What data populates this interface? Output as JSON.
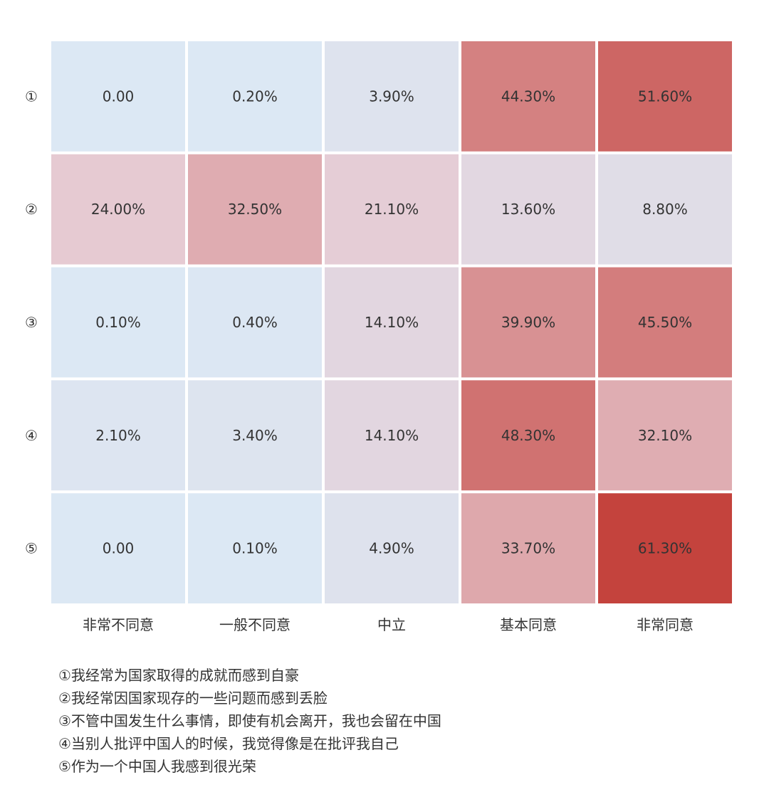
{
  "chart_data": {
    "type": "heatmap",
    "title": "",
    "xlabel": "",
    "ylabel": "",
    "columns": [
      "非常不同意",
      "一般不同意",
      "中立",
      "基本同意",
      "非常同意"
    ],
    "rows": [
      "①",
      "②",
      "③",
      "④",
      "⑤"
    ],
    "values": [
      [
        0.0,
        0.2,
        3.9,
        44.3,
        51.6
      ],
      [
        24.0,
        32.5,
        21.1,
        13.6,
        8.8
      ],
      [
        0.1,
        0.4,
        14.1,
        39.9,
        45.5
      ],
      [
        2.1,
        3.4,
        14.1,
        48.3,
        32.1
      ],
      [
        0.0,
        0.1,
        4.9,
        33.7,
        61.3
      ]
    ],
    "cell_labels": [
      [
        "0.00",
        "0.20%",
        "3.90%",
        "44.30%",
        "51.60%"
      ],
      [
        "24.00%",
        "32.50%",
        "21.10%",
        "13.60%",
        "8.80%"
      ],
      [
        "0.10%",
        "0.40%",
        "14.10%",
        "39.90%",
        "45.50%"
      ],
      [
        "2.10%",
        "3.40%",
        "14.10%",
        "48.30%",
        "32.10%"
      ],
      [
        "0.00",
        "0.10%",
        "4.90%",
        "33.70%",
        "61.30%"
      ]
    ],
    "unit": "%",
    "color_scale": {
      "low": "#dce8f4",
      "mid": "#e6c9d1",
      "high": "#c4433d"
    },
    "legend": "none"
  },
  "notes": [
    "①我经常为国家取得的成就而感到自豪",
    "②我经常因国家现存的一些问题而感到丢脸",
    "③不管中国发生什么事情，即使有机会离开，我也会留在中国",
    "④当别人批评中国人的时候，我觉得像是在批评我自己",
    "⑤作为一个中国人我感到很光荣"
  ]
}
